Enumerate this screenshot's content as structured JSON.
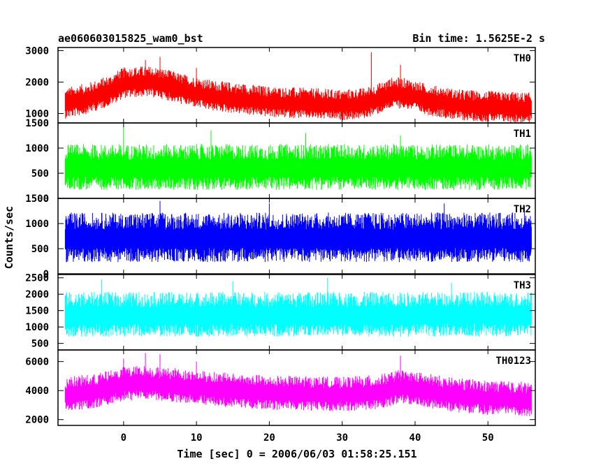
{
  "chart_data": {
    "type": "line",
    "title": "ae060603015825_wam0_bst",
    "subtitle": "Bin time: 1.5625E-2 s",
    "ylabel": "Counts/sec",
    "xlabel": "Time [sec] 0 = 2006/06/03 01:58:25.151",
    "xlim": [
      -9,
      56.5
    ],
    "xticks": [
      0,
      10,
      20,
      30,
      40,
      50
    ],
    "xtick_labels": [
      "0",
      "10",
      "20",
      "30",
      "40",
      "50"
    ],
    "data_range": [
      -8,
      56
    ],
    "grid": false,
    "panels": [
      {
        "name": "TH0",
        "color": "#ff0000",
        "ylim": [
          700,
          3100
        ],
        "yticks": [
          1000,
          2000,
          3000
        ],
        "ytick_labels": [
          "1000",
          "2000",
          "3000"
        ],
        "profile": [
          [
            -8,
            1300
          ],
          [
            -5,
            1450
          ],
          [
            -2,
            1700
          ],
          [
            0,
            1950
          ],
          [
            3,
            2000
          ],
          [
            5,
            1950
          ],
          [
            8,
            1750
          ],
          [
            12,
            1550
          ],
          [
            16,
            1450
          ],
          [
            20,
            1350
          ],
          [
            25,
            1300
          ],
          [
            30,
            1250
          ],
          [
            33,
            1300
          ],
          [
            35,
            1450
          ],
          [
            37,
            1650
          ],
          [
            39,
            1600
          ],
          [
            42,
            1400
          ],
          [
            46,
            1250
          ],
          [
            50,
            1200
          ],
          [
            56,
            1150
          ]
        ],
        "spread": 520,
        "spikes": [
          [
            3,
            2700
          ],
          [
            5,
            2800
          ],
          [
            34,
            2950
          ],
          [
            38,
            2550
          ],
          [
            10,
            2450
          ]
        ]
      },
      {
        "name": "TH1",
        "color": "#00ff00",
        "ylim": [
          0,
          1500
        ],
        "yticks": [
          0,
          500,
          1000,
          1500
        ],
        "ytick_labels": [
          "0",
          "500",
          "1000",
          "1500"
        ],
        "profile": [
          [
            -8,
            600
          ],
          [
            56,
            600
          ]
        ],
        "spread": 480,
        "spikes": [
          [
            0,
            1450
          ],
          [
            12,
            1350
          ],
          [
            25,
            1300
          ],
          [
            38,
            1250
          ]
        ]
      },
      {
        "name": "TH2",
        "color": "#0000ff",
        "ylim": [
          0,
          1500
        ],
        "yticks": [
          0,
          500,
          1000,
          1500
        ],
        "ytick_labels": [
          "0",
          "500",
          "1000",
          "1500"
        ],
        "profile": [
          [
            -8,
            700
          ],
          [
            56,
            700
          ]
        ],
        "spread": 520,
        "spikes": [
          [
            5,
            1450
          ],
          [
            20,
            1400
          ],
          [
            44,
            1400
          ],
          [
            55,
            1350
          ]
        ]
      },
      {
        "name": "TH3",
        "color": "#00ffff",
        "ylim": [
          300,
          2600
        ],
        "yticks": [
          500,
          1000,
          1500,
          2000,
          2500
        ],
        "ytick_labels": [
          "500",
          "1000",
          "1500",
          "2000",
          "2500"
        ],
        "profile": [
          [
            -8,
            1350
          ],
          [
            56,
            1350
          ]
        ],
        "spread": 720,
        "spikes": [
          [
            -3,
            2450
          ],
          [
            15,
            2400
          ],
          [
            28,
            2500
          ],
          [
            45,
            2350
          ]
        ]
      },
      {
        "name": "TH0123",
        "color": "#ff00ff",
        "ylim": [
          1600,
          6800
        ],
        "yticks": [
          2000,
          4000,
          6000
        ],
        "ytick_labels": [
          "2000",
          "4000",
          "6000"
        ],
        "profile": [
          [
            -8,
            3700
          ],
          [
            -4,
            3900
          ],
          [
            0,
            4400
          ],
          [
            3,
            4500
          ],
          [
            6,
            4350
          ],
          [
            10,
            4150
          ],
          [
            15,
            3950
          ],
          [
            20,
            3800
          ],
          [
            25,
            3750
          ],
          [
            30,
            3700
          ],
          [
            35,
            3850
          ],
          [
            38,
            4200
          ],
          [
            41,
            4000
          ],
          [
            45,
            3650
          ],
          [
            50,
            3450
          ],
          [
            56,
            3350
          ]
        ],
        "spread": 1250,
        "spikes": [
          [
            3,
            6600
          ],
          [
            5,
            6500
          ],
          [
            38,
            6400
          ],
          [
            10,
            6000
          ],
          [
            0,
            6200
          ]
        ]
      }
    ]
  }
}
